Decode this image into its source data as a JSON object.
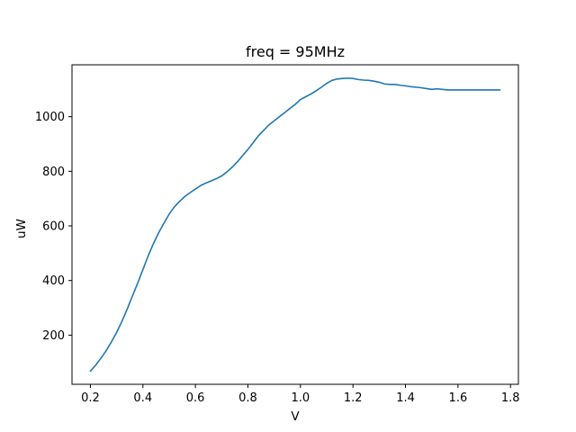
{
  "chart_data": {
    "type": "line",
    "title": "freq = 95MHz",
    "xlabel": "V",
    "ylabel": "uW",
    "xlim": [
      0.13,
      1.83
    ],
    "ylim": [
      20,
      1190
    ],
    "xticks": [
      0.2,
      0.4,
      0.6,
      0.8,
      1.0,
      1.2,
      1.4,
      1.6,
      1.8
    ],
    "xtick_labels": [
      "0.2",
      "0.4",
      "0.6",
      "0.8",
      "1.0",
      "1.2",
      "1.4",
      "1.6",
      "1.8"
    ],
    "yticks": [
      200,
      400,
      600,
      800,
      1000
    ],
    "ytick_labels": [
      "200",
      "400",
      "600",
      "800",
      "1000"
    ],
    "grid": false,
    "color": "#1f77b4",
    "series": [
      {
        "x": [
          0.2,
          0.22,
          0.24,
          0.26,
          0.28,
          0.3,
          0.32,
          0.34,
          0.36,
          0.38,
          0.4,
          0.42,
          0.44,
          0.46,
          0.48,
          0.5,
          0.52,
          0.54,
          0.56,
          0.58,
          0.6,
          0.62,
          0.64,
          0.66,
          0.68,
          0.7,
          0.72,
          0.74,
          0.76,
          0.78,
          0.8,
          0.82,
          0.84,
          0.86,
          0.88,
          0.9,
          0.92,
          0.94,
          0.96,
          0.98,
          1.0,
          1.02,
          1.04,
          1.06,
          1.08,
          1.1,
          1.12,
          1.14,
          1.16,
          1.18,
          1.2,
          1.22,
          1.24,
          1.26,
          1.28,
          1.3,
          1.32,
          1.34,
          1.36,
          1.38,
          1.4,
          1.42,
          1.44,
          1.46,
          1.48,
          1.5,
          1.52,
          1.54,
          1.56,
          1.58,
          1.6,
          1.62,
          1.64,
          1.66,
          1.68,
          1.7,
          1.72,
          1.74,
          1.76
        ],
        "values": [
          68,
          90,
          115,
          143,
          175,
          210,
          250,
          295,
          343,
          390,
          440,
          490,
          535,
          575,
          610,
          643,
          670,
          690,
          708,
          722,
          735,
          748,
          757,
          765,
          773,
          783,
          798,
          815,
          835,
          858,
          880,
          905,
          930,
          950,
          970,
          985,
          1000,
          1015,
          1030,
          1045,
          1063,
          1073,
          1083,
          1095,
          1108,
          1122,
          1133,
          1138,
          1140,
          1141,
          1140,
          1136,
          1134,
          1133,
          1130,
          1126,
          1120,
          1118,
          1118,
          1115,
          1113,
          1110,
          1108,
          1106,
          1103,
          1100,
          1102,
          1100,
          1098,
          1098,
          1098,
          1098,
          1098,
          1098,
          1098,
          1098,
          1098,
          1098,
          1098
        ]
      }
    ]
  }
}
